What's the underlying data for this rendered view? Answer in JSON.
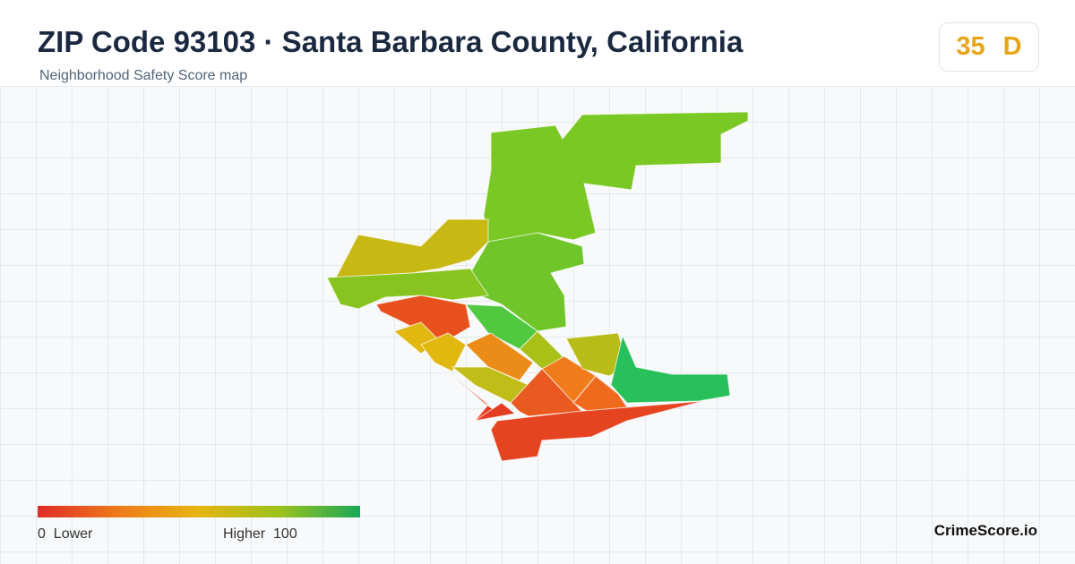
{
  "header": {
    "title": "ZIP Code 93103 · Santa Barbara County, California",
    "subtitle": "Neighborhood Safety Score map"
  },
  "score": {
    "value": 35,
    "grade": "D"
  },
  "legend": {
    "min": 0,
    "min_label": "Lower",
    "max_label": "Higher",
    "max": 100
  },
  "brand": "CrimeScore.io"
}
